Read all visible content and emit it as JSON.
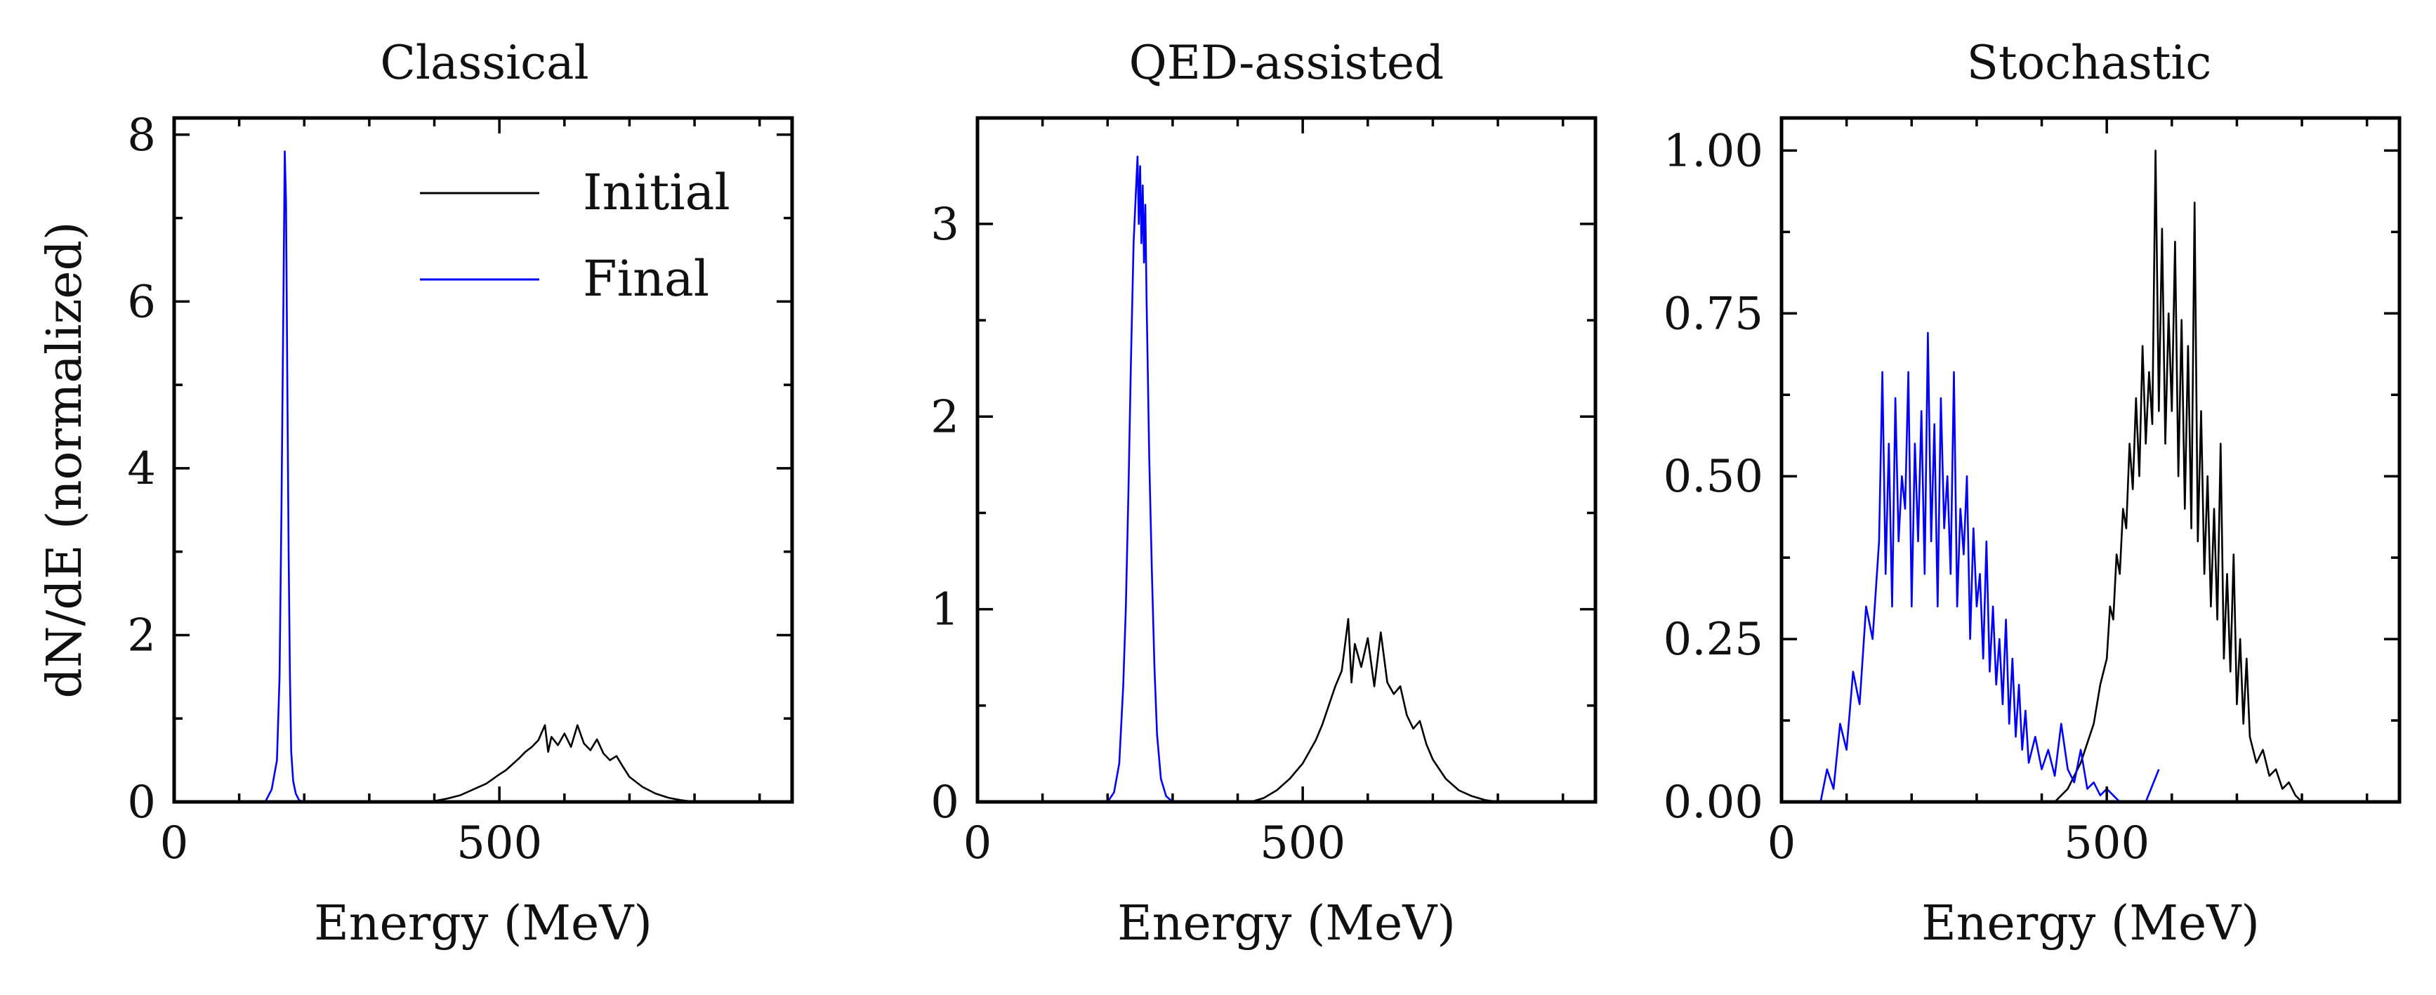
{
  "figure": {
    "background": "#ffffff"
  },
  "chart_data": [
    {
      "type": "line",
      "title": "Classical",
      "xlabel": "Energy (MeV)",
      "ylabel": "dN/dE (normalized)",
      "xlim": [
        0,
        950
      ],
      "ylim": [
        0,
        8.2
      ],
      "xticks": [
        0,
        500
      ],
      "xtick_labels": [
        "0",
        "500"
      ],
      "yticks": [
        0,
        2,
        4,
        6,
        8
      ],
      "ytick_labels": [
        "0",
        "2",
        "4",
        "6",
        "8"
      ],
      "grid": false,
      "legend": {
        "placement": "top-right",
        "entries": [
          "Initial",
          "Final"
        ]
      },
      "series": [
        {
          "name": "Initial",
          "color": "#000000",
          "x": [
            380,
            400,
            420,
            440,
            460,
            480,
            500,
            510,
            520,
            530,
            540,
            550,
            560,
            570,
            575,
            580,
            590,
            600,
            610,
            620,
            630,
            640,
            650,
            660,
            670,
            680,
            690,
            700,
            720,
            740,
            760,
            780,
            800
          ],
          "y": [
            0,
            0.01,
            0.04,
            0.08,
            0.15,
            0.22,
            0.33,
            0.38,
            0.45,
            0.52,
            0.6,
            0.66,
            0.74,
            0.92,
            0.6,
            0.78,
            0.68,
            0.82,
            0.66,
            0.92,
            0.7,
            0.62,
            0.75,
            0.58,
            0.5,
            0.55,
            0.42,
            0.3,
            0.18,
            0.1,
            0.05,
            0.02,
            0
          ]
        },
        {
          "name": "Final",
          "color": "#0000ff",
          "x": [
            140,
            150,
            158,
            162,
            165,
            168,
            170,
            172,
            174,
            176,
            178,
            180,
            183,
            187,
            192,
            200
          ],
          "y": [
            0,
            0.15,
            0.5,
            1.5,
            3.5,
            6.0,
            7.8,
            7.2,
            5.0,
            3.0,
            1.5,
            0.6,
            0.25,
            0.1,
            0.02,
            0
          ]
        }
      ]
    },
    {
      "type": "line",
      "title": "QED-assisted",
      "xlabel": "Energy (MeV)",
      "ylabel": "",
      "xlim": [
        0,
        950
      ],
      "ylim": [
        0,
        3.55
      ],
      "xticks": [
        0,
        500
      ],
      "xtick_labels": [
        "0",
        "500"
      ],
      "yticks": [
        0,
        1,
        2,
        3
      ],
      "ytick_labels": [
        "0",
        "1",
        "2",
        "3"
      ],
      "grid": false,
      "series": [
        {
          "name": "Initial",
          "color": "#000000",
          "x": [
            420,
            440,
            460,
            480,
            500,
            510,
            520,
            530,
            540,
            550,
            560,
            570,
            575,
            580,
            590,
            600,
            610,
            620,
            630,
            640,
            650,
            660,
            670,
            680,
            690,
            700,
            720,
            740,
            760,
            780,
            800
          ],
          "y": [
            0,
            0.02,
            0.06,
            0.12,
            0.2,
            0.26,
            0.32,
            0.4,
            0.5,
            0.6,
            0.68,
            0.95,
            0.62,
            0.82,
            0.7,
            0.85,
            0.6,
            0.88,
            0.62,
            0.56,
            0.6,
            0.45,
            0.38,
            0.42,
            0.3,
            0.22,
            0.12,
            0.06,
            0.03,
            0.01,
            0
          ]
        },
        {
          "name": "Final",
          "color": "#0000ff",
          "x": [
            200,
            210,
            218,
            224,
            228,
            232,
            236,
            240,
            244,
            246,
            248,
            250,
            252,
            254,
            256,
            258,
            260,
            262,
            264,
            268,
            272,
            276,
            282,
            290,
            300
          ],
          "y": [
            0,
            0.05,
            0.2,
            0.6,
            1.0,
            1.6,
            2.3,
            2.9,
            3.2,
            3.35,
            3.0,
            3.3,
            2.9,
            3.2,
            2.8,
            3.1,
            2.6,
            2.2,
            1.8,
            1.2,
            0.7,
            0.35,
            0.12,
            0.03,
            0
          ]
        }
      ]
    },
    {
      "type": "line",
      "title": "Stochastic",
      "xlabel": "Energy (MeV)",
      "ylabel": "",
      "xlim": [
        0,
        950
      ],
      "ylim": [
        0,
        1.05
      ],
      "xticks": [
        0,
        500
      ],
      "xtick_labels": [
        "0",
        "500"
      ],
      "yticks": [
        0,
        0.25,
        0.5,
        0.75,
        1.0
      ],
      "ytick_labels": [
        "0.00",
        "0.25",
        "0.50",
        "0.75",
        "1.00"
      ],
      "grid": false,
      "series": [
        {
          "name": "Initial",
          "color": "#000000",
          "x": [
            420,
            440,
            460,
            480,
            490,
            500,
            505,
            510,
            515,
            520,
            525,
            530,
            535,
            540,
            545,
            550,
            555,
            560,
            565,
            570,
            575,
            580,
            585,
            590,
            595,
            600,
            605,
            610,
            615,
            620,
            625,
            630,
            635,
            640,
            645,
            650,
            655,
            660,
            665,
            670,
            675,
            680,
            685,
            690,
            695,
            700,
            705,
            710,
            715,
            720,
            730,
            740,
            750,
            760,
            770,
            780,
            790,
            800
          ],
          "y": [
            0,
            0.02,
            0.06,
            0.12,
            0.18,
            0.22,
            0.3,
            0.28,
            0.38,
            0.35,
            0.45,
            0.42,
            0.55,
            0.48,
            0.62,
            0.5,
            0.7,
            0.55,
            0.66,
            0.58,
            1.0,
            0.6,
            0.88,
            0.55,
            0.75,
            0.6,
            0.86,
            0.5,
            0.74,
            0.45,
            0.7,
            0.42,
            0.92,
            0.4,
            0.6,
            0.35,
            0.5,
            0.3,
            0.45,
            0.28,
            0.55,
            0.22,
            0.35,
            0.2,
            0.38,
            0.15,
            0.25,
            0.12,
            0.22,
            0.1,
            0.06,
            0.08,
            0.04,
            0.05,
            0.02,
            0.03,
            0.01,
            0
          ]
        },
        {
          "name": "Final",
          "color": "#0000ff",
          "x": [
            60,
            70,
            80,
            90,
            100,
            110,
            120,
            130,
            140,
            150,
            155,
            160,
            165,
            170,
            175,
            180,
            185,
            190,
            195,
            200,
            205,
            210,
            215,
            220,
            225,
            230,
            235,
            240,
            245,
            250,
            255,
            260,
            265,
            270,
            275,
            280,
            285,
            290,
            295,
            300,
            305,
            310,
            315,
            320,
            325,
            330,
            335,
            340,
            345,
            350,
            355,
            360,
            365,
            370,
            375,
            380,
            390,
            400,
            410,
            420,
            430,
            440,
            450,
            460,
            470,
            480,
            490,
            500,
            510,
            520,
            540,
            560,
            580
          ],
          "y": [
            0,
            0.05,
            0.02,
            0.12,
            0.08,
            0.2,
            0.15,
            0.3,
            0.25,
            0.4,
            0.66,
            0.35,
            0.55,
            0.3,
            0.62,
            0.4,
            0.5,
            0.45,
            0.66,
            0.3,
            0.55,
            0.4,
            0.6,
            0.35,
            0.72,
            0.4,
            0.58,
            0.3,
            0.62,
            0.42,
            0.5,
            0.35,
            0.66,
            0.3,
            0.45,
            0.38,
            0.5,
            0.25,
            0.42,
            0.3,
            0.35,
            0.22,
            0.4,
            0.2,
            0.3,
            0.18,
            0.25,
            0.15,
            0.28,
            0.12,
            0.22,
            0.1,
            0.18,
            0.08,
            0.14,
            0.06,
            0.1,
            0.05,
            0.08,
            0.04,
            0.12,
            0.05,
            0.03,
            0.08,
            0.02,
            0.03,
            0.01,
            0.02,
            0.01,
            0,
            0,
            0,
            0.05
          ]
        }
      ]
    }
  ]
}
